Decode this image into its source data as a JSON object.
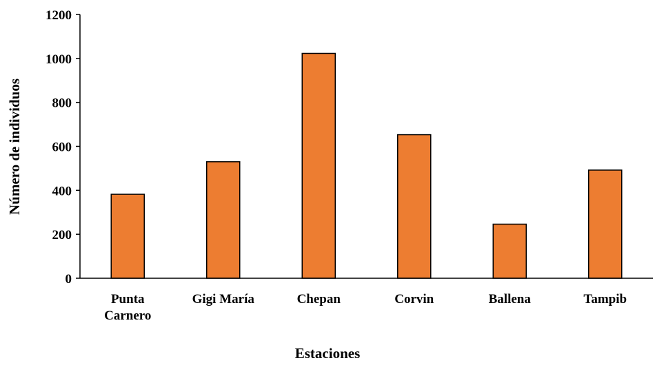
{
  "chart_data": {
    "type": "bar",
    "title": "",
    "xlabel": "Estaciones",
    "ylabel": "Número de individuos",
    "ylim": [
      0,
      1200
    ],
    "yticks": [
      0,
      200,
      400,
      600,
      800,
      1000,
      1200
    ],
    "categories": [
      [
        "Punta",
        "Carnero"
      ],
      [
        "Gigi María"
      ],
      [
        "Chepan"
      ],
      [
        "Corvin"
      ],
      [
        "Ballena"
      ],
      [
        "Tampib"
      ]
    ],
    "values": [
      382,
      530,
      1023,
      653,
      246,
      492
    ],
    "bar_color": "#ED7D31",
    "bar_edge_color": "#000000",
    "grid": false,
    "legend": "none"
  }
}
